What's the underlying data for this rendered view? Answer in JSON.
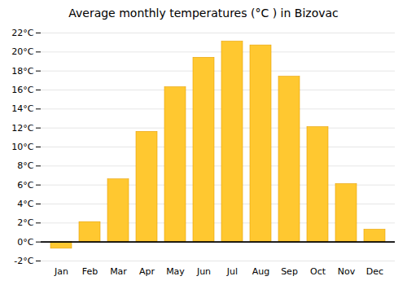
{
  "chart_data": {
    "type": "bar",
    "title": "Average monthly temperatures (°C ) in Bizovac",
    "categories": [
      "Jan",
      "Feb",
      "Mar",
      "Apr",
      "May",
      "Jun",
      "Jul",
      "Aug",
      "Sep",
      "Oct",
      "Nov",
      "Dec"
    ],
    "values": [
      -0.7,
      2.1,
      6.6,
      11.6,
      16.3,
      19.4,
      21.1,
      20.7,
      17.4,
      12.1,
      6.1,
      1.3
    ],
    "color": "#FFC830",
    "ylim": [
      -2,
      22
    ],
    "yticks": [
      {
        "value": -2,
        "label": "-2°C"
      },
      {
        "value": 0,
        "label": "0°C"
      },
      {
        "value": 2,
        "label": "2°C"
      },
      {
        "value": 4,
        "label": "4°C"
      },
      {
        "value": 6,
        "label": "6°C"
      },
      {
        "value": 8,
        "label": "8°C"
      },
      {
        "value": 10,
        "label": "10°C"
      },
      {
        "value": 12,
        "label": "12°C"
      },
      {
        "value": 14,
        "label": "14°C"
      },
      {
        "value": 16,
        "label": "16°C"
      },
      {
        "value": 18,
        "label": "18°C"
      },
      {
        "value": 20,
        "label": "20°C"
      },
      {
        "value": 22,
        "label": "22°C"
      }
    ],
    "grid": true
  }
}
